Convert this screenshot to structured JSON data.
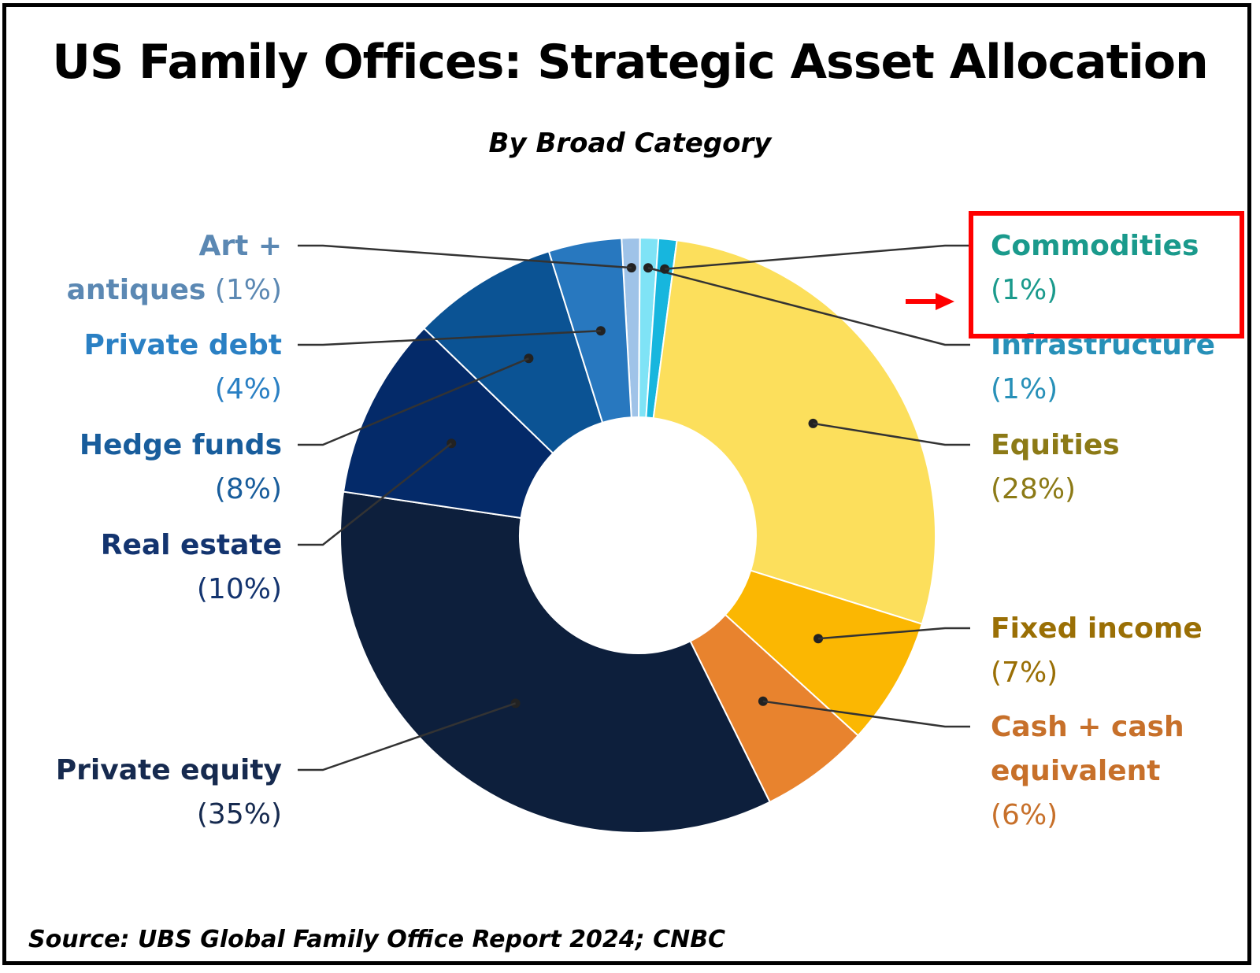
{
  "title": "US Family Offices: Strategic Asset Allocation",
  "subtitle": "By Broad Category",
  "source": "Source: UBS Global Family Office Report 2024; CNBC",
  "chart_data": {
    "type": "pie",
    "donut": true,
    "slices": [
      {
        "key": "art",
        "label_lines": [
          "Art +",
          "antiques"
        ],
        "pct": "(1%)",
        "value": 1,
        "color": "#9fc3e8",
        "label_color": "#5b88b3"
      },
      {
        "key": "infrastructure",
        "label_lines": [
          "Infrastructure"
        ],
        "pct": "(1%)",
        "value": 1,
        "color": "#7fe3f6",
        "label_color": "#2790b8"
      },
      {
        "key": "commodities",
        "label_lines": [
          "Commodities"
        ],
        "pct": "(1%)",
        "value": 1,
        "color": "#17b6de",
        "label_color": "#1a9a8c"
      },
      {
        "key": "equities",
        "label_lines": [
          "Equities"
        ],
        "pct": "(28%)",
        "value": 28,
        "color": "#fcdf5c",
        "label_color": "#8c7a16"
      },
      {
        "key": "fixed-income",
        "label_lines": [
          "Fixed income"
        ],
        "pct": "(7%)",
        "value": 7,
        "color": "#fbb702",
        "label_color": "#9a6f05"
      },
      {
        "key": "cash",
        "label_lines": [
          "Cash + cash",
          "equivalent"
        ],
        "pct": "(6%)",
        "value": 6,
        "color": "#e8832e",
        "label_color": "#c7702a"
      },
      {
        "key": "private-equity",
        "label_lines": [
          "Private equity"
        ],
        "pct": "(35%)",
        "value": 35,
        "color": "#0d1f3c",
        "label_color": "#162a4f"
      },
      {
        "key": "real-estate",
        "label_lines": [
          "Real estate"
        ],
        "pct": "(10%)",
        "value": 10,
        "color": "#042a69",
        "label_color": "#13346f"
      },
      {
        "key": "hedge-funds",
        "label_lines": [
          "Hedge funds"
        ],
        "pct": "(8%)",
        "value": 8,
        "color": "#0b5394",
        "label_color": "#185d9c"
      },
      {
        "key": "private-debt",
        "label_lines": [
          "Private debt"
        ],
        "pct": "(4%)",
        "value": 4,
        "color": "#2878bf",
        "label_color": "#2a80c4"
      }
    ],
    "highlight": "commodities",
    "highlight_color": "#ff0000",
    "legend": "labels with leader lines"
  }
}
